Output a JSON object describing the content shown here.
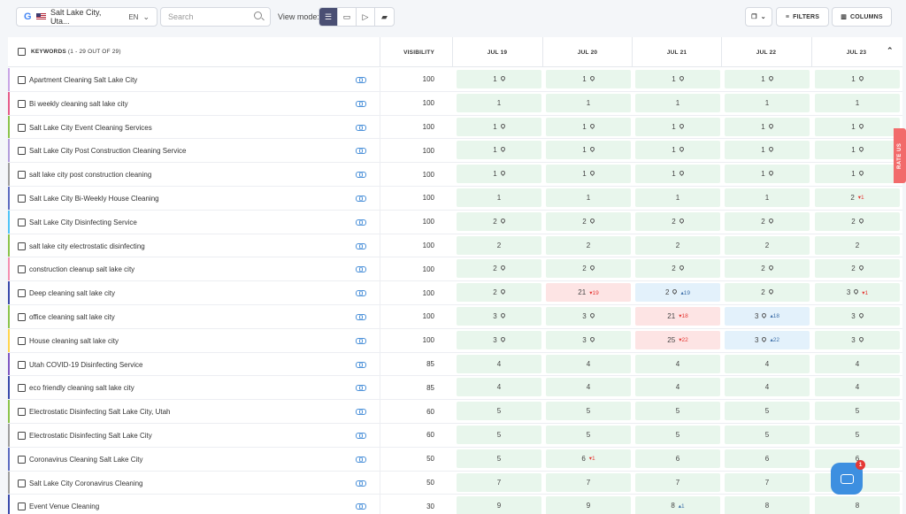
{
  "toolbar": {
    "location": "Salt Lake City, Uta...",
    "language": "EN",
    "search_placeholder": "Search",
    "view_mode_label": "View mode:",
    "filters_label": "FILTERS",
    "columns_label": "COLUMNS"
  },
  "table": {
    "keywords_header": "KEYWORDS",
    "keywords_count": "(1 - 29 OUT OF 29)",
    "visibility_header": "VISIBILITY",
    "dates": [
      "JUL 19",
      "JUL 20",
      "JUL 21",
      "JUL 22",
      "JUL 23"
    ],
    "rows": [
      {
        "keyword": "Apartment Cleaning Salt Lake City",
        "visibility": "100",
        "stripe": "#c9a6e6",
        "cells": [
          {
            "v": "1",
            "pin": true,
            "c": "g"
          },
          {
            "v": "1",
            "pin": true,
            "c": "g"
          },
          {
            "v": "1",
            "pin": true,
            "c": "g"
          },
          {
            "v": "1",
            "pin": true,
            "c": "g"
          },
          {
            "v": "1",
            "pin": true,
            "c": "g"
          }
        ]
      },
      {
        "keyword": "Bi weekly cleaning salt lake city",
        "visibility": "100",
        "stripe": "#e65c8a",
        "cells": [
          {
            "v": "1",
            "c": "g"
          },
          {
            "v": "1",
            "c": "g"
          },
          {
            "v": "1",
            "c": "g"
          },
          {
            "v": "1",
            "c": "g"
          },
          {
            "v": "1",
            "c": "g"
          }
        ]
      },
      {
        "keyword": "Salt Lake City Event Cleaning Services",
        "visibility": "100",
        "stripe": "#8bc34a",
        "cells": [
          {
            "v": "1",
            "pin": true,
            "c": "g"
          },
          {
            "v": "1",
            "pin": true,
            "c": "g"
          },
          {
            "v": "1",
            "pin": true,
            "c": "g"
          },
          {
            "v": "1",
            "pin": true,
            "c": "g"
          },
          {
            "v": "1",
            "pin": true,
            "c": "g"
          }
        ]
      },
      {
        "keyword": "Salt Lake City Post Construction Cleaning Service",
        "visibility": "100",
        "stripe": "#b39ddb",
        "cells": [
          {
            "v": "1",
            "pin": true,
            "c": "g"
          },
          {
            "v": "1",
            "pin": true,
            "c": "g"
          },
          {
            "v": "1",
            "pin": true,
            "c": "g"
          },
          {
            "v": "1",
            "pin": true,
            "c": "g"
          },
          {
            "v": "1",
            "pin": true,
            "c": "g"
          }
        ]
      },
      {
        "keyword": "salt lake city post construction cleaning",
        "visibility": "100",
        "stripe": "#9e9e9e",
        "cells": [
          {
            "v": "1",
            "pin": true,
            "c": "g"
          },
          {
            "v": "1",
            "pin": true,
            "c": "g"
          },
          {
            "v": "1",
            "pin": true,
            "c": "g"
          },
          {
            "v": "1",
            "pin": true,
            "c": "g"
          },
          {
            "v": "1",
            "pin": true,
            "c": "g"
          }
        ]
      },
      {
        "keyword": "Salt Lake City Bi-Weekly House Cleaning",
        "visibility": "100",
        "stripe": "#5c6bc0",
        "cells": [
          {
            "v": "1",
            "c": "g"
          },
          {
            "v": "1",
            "c": "g"
          },
          {
            "v": "1",
            "c": "g"
          },
          {
            "v": "1",
            "c": "g"
          },
          {
            "v": "2",
            "c": "g",
            "d": "1",
            "dir": "dn"
          }
        ]
      },
      {
        "keyword": "Salt Lake City Disinfecting Service",
        "visibility": "100",
        "stripe": "#4fc3f7",
        "cells": [
          {
            "v": "2",
            "pin": true,
            "c": "g"
          },
          {
            "v": "2",
            "pin": true,
            "c": "g"
          },
          {
            "v": "2",
            "pin": true,
            "c": "g"
          },
          {
            "v": "2",
            "pin": true,
            "c": "g"
          },
          {
            "v": "2",
            "pin": true,
            "c": "g"
          }
        ]
      },
      {
        "keyword": "salt lake city electrostatic disinfecting",
        "visibility": "100",
        "stripe": "#8bc34a",
        "cells": [
          {
            "v": "2",
            "c": "g"
          },
          {
            "v": "2",
            "c": "g"
          },
          {
            "v": "2",
            "c": "g"
          },
          {
            "v": "2",
            "c": "g"
          },
          {
            "v": "2",
            "c": "g"
          }
        ]
      },
      {
        "keyword": "construction cleanup salt lake city",
        "visibility": "100",
        "stripe": "#f48fb1",
        "cells": [
          {
            "v": "2",
            "pin": true,
            "c": "g"
          },
          {
            "v": "2",
            "pin": true,
            "c": "g"
          },
          {
            "v": "2",
            "pin": true,
            "c": "g"
          },
          {
            "v": "2",
            "pin": true,
            "c": "g"
          },
          {
            "v": "2",
            "pin": true,
            "c": "g"
          }
        ]
      },
      {
        "keyword": "Deep cleaning salt lake city",
        "visibility": "100",
        "stripe": "#3949ab",
        "cells": [
          {
            "v": "2",
            "pin": true,
            "c": "g"
          },
          {
            "v": "21",
            "c": "r",
            "d": "19",
            "dir": "dn"
          },
          {
            "v": "2",
            "pin": true,
            "c": "b",
            "d": "19",
            "dir": "up"
          },
          {
            "v": "2",
            "pin": true,
            "c": "g"
          },
          {
            "v": "3",
            "pin": true,
            "c": "g",
            "d": "1",
            "dir": "dn"
          }
        ]
      },
      {
        "keyword": "office cleaning salt lake city",
        "visibility": "100",
        "stripe": "#8bc34a",
        "cells": [
          {
            "v": "3",
            "pin": true,
            "c": "g"
          },
          {
            "v": "3",
            "pin": true,
            "c": "g"
          },
          {
            "v": "21",
            "c": "r",
            "d": "18",
            "dir": "dn"
          },
          {
            "v": "3",
            "pin": true,
            "c": "b",
            "d": "18",
            "dir": "up"
          },
          {
            "v": "3",
            "pin": true,
            "c": "g"
          }
        ]
      },
      {
        "keyword": "House cleaning salt lake city",
        "visibility": "100",
        "stripe": "#ffd54f",
        "cells": [
          {
            "v": "3",
            "pin": true,
            "c": "g"
          },
          {
            "v": "3",
            "pin": true,
            "c": "g"
          },
          {
            "v": "25",
            "c": "r",
            "d": "22",
            "dir": "dn"
          },
          {
            "v": "3",
            "pin": true,
            "c": "b",
            "d": "22",
            "dir": "up"
          },
          {
            "v": "3",
            "pin": true,
            "c": "g"
          }
        ]
      },
      {
        "keyword": "Utah COVID-19 Disinfecting Service",
        "visibility": "85",
        "stripe": "#7e57c2",
        "cells": [
          {
            "v": "4",
            "c": "g"
          },
          {
            "v": "4",
            "c": "g"
          },
          {
            "v": "4",
            "c": "g"
          },
          {
            "v": "4",
            "c": "g"
          },
          {
            "v": "4",
            "c": "g"
          }
        ]
      },
      {
        "keyword": "eco friendly cleaning salt lake city",
        "visibility": "85",
        "stripe": "#3949ab",
        "cells": [
          {
            "v": "4",
            "c": "g"
          },
          {
            "v": "4",
            "c": "g"
          },
          {
            "v": "4",
            "c": "g"
          },
          {
            "v": "4",
            "c": "g"
          },
          {
            "v": "4",
            "c": "g"
          }
        ]
      },
      {
        "keyword": "Electrostatic Disinfecting Salt Lake City, Utah",
        "visibility": "60",
        "stripe": "#8bc34a",
        "cells": [
          {
            "v": "5",
            "c": "g"
          },
          {
            "v": "5",
            "c": "g"
          },
          {
            "v": "5",
            "c": "g"
          },
          {
            "v": "5",
            "c": "g"
          },
          {
            "v": "5",
            "c": "g"
          }
        ]
      },
      {
        "keyword": "Electrostatic Disinfecting Salt Lake City",
        "visibility": "60",
        "stripe": "#9e9e9e",
        "cells": [
          {
            "v": "5",
            "c": "g"
          },
          {
            "v": "5",
            "c": "g"
          },
          {
            "v": "5",
            "c": "g"
          },
          {
            "v": "5",
            "c": "g"
          },
          {
            "v": "5",
            "c": "g"
          }
        ]
      },
      {
        "keyword": "Coronavirus Cleaning Salt Lake City",
        "visibility": "50",
        "stripe": "#5c6bc0",
        "cells": [
          {
            "v": "5",
            "c": "g"
          },
          {
            "v": "6",
            "c": "g",
            "d": "1",
            "dir": "dn"
          },
          {
            "v": "6",
            "c": "g"
          },
          {
            "v": "6",
            "c": "g"
          },
          {
            "v": "6",
            "c": "g"
          }
        ]
      },
      {
        "keyword": "Salt Lake City Coronavirus Cleaning",
        "visibility": "50",
        "stripe": "#9e9e9e",
        "cells": [
          {
            "v": "7",
            "c": "g"
          },
          {
            "v": "7",
            "c": "g"
          },
          {
            "v": "7",
            "c": "g"
          },
          {
            "v": "7",
            "c": "g"
          },
          {
            "v": "",
            "c": "g"
          }
        ]
      },
      {
        "keyword": "Event Venue Cleaning",
        "visibility": "30",
        "stripe": "#3949ab",
        "cells": [
          {
            "v": "9",
            "c": "g"
          },
          {
            "v": "9",
            "c": "g"
          },
          {
            "v": "8",
            "c": "g",
            "d": "1",
            "dir": "up"
          },
          {
            "v": "8",
            "c": "g"
          },
          {
            "v": "8",
            "c": "g"
          }
        ]
      }
    ]
  },
  "rate_tab": "RATE US",
  "chat_badge": "1",
  "icons": {
    "google": "google-icon",
    "flag": "us-flag-icon",
    "search": "search-icon",
    "list_view": "list-view-icon",
    "folder_view": "folder-view-icon",
    "tag_view": "tag-view-icon",
    "folder_filled": "folder-filled-icon",
    "copy": "copy-icon",
    "filter": "filter-icon",
    "columns": "columns-icon",
    "link": "link-icon",
    "pin": "location-pin-icon",
    "chat": "chat-icon"
  }
}
